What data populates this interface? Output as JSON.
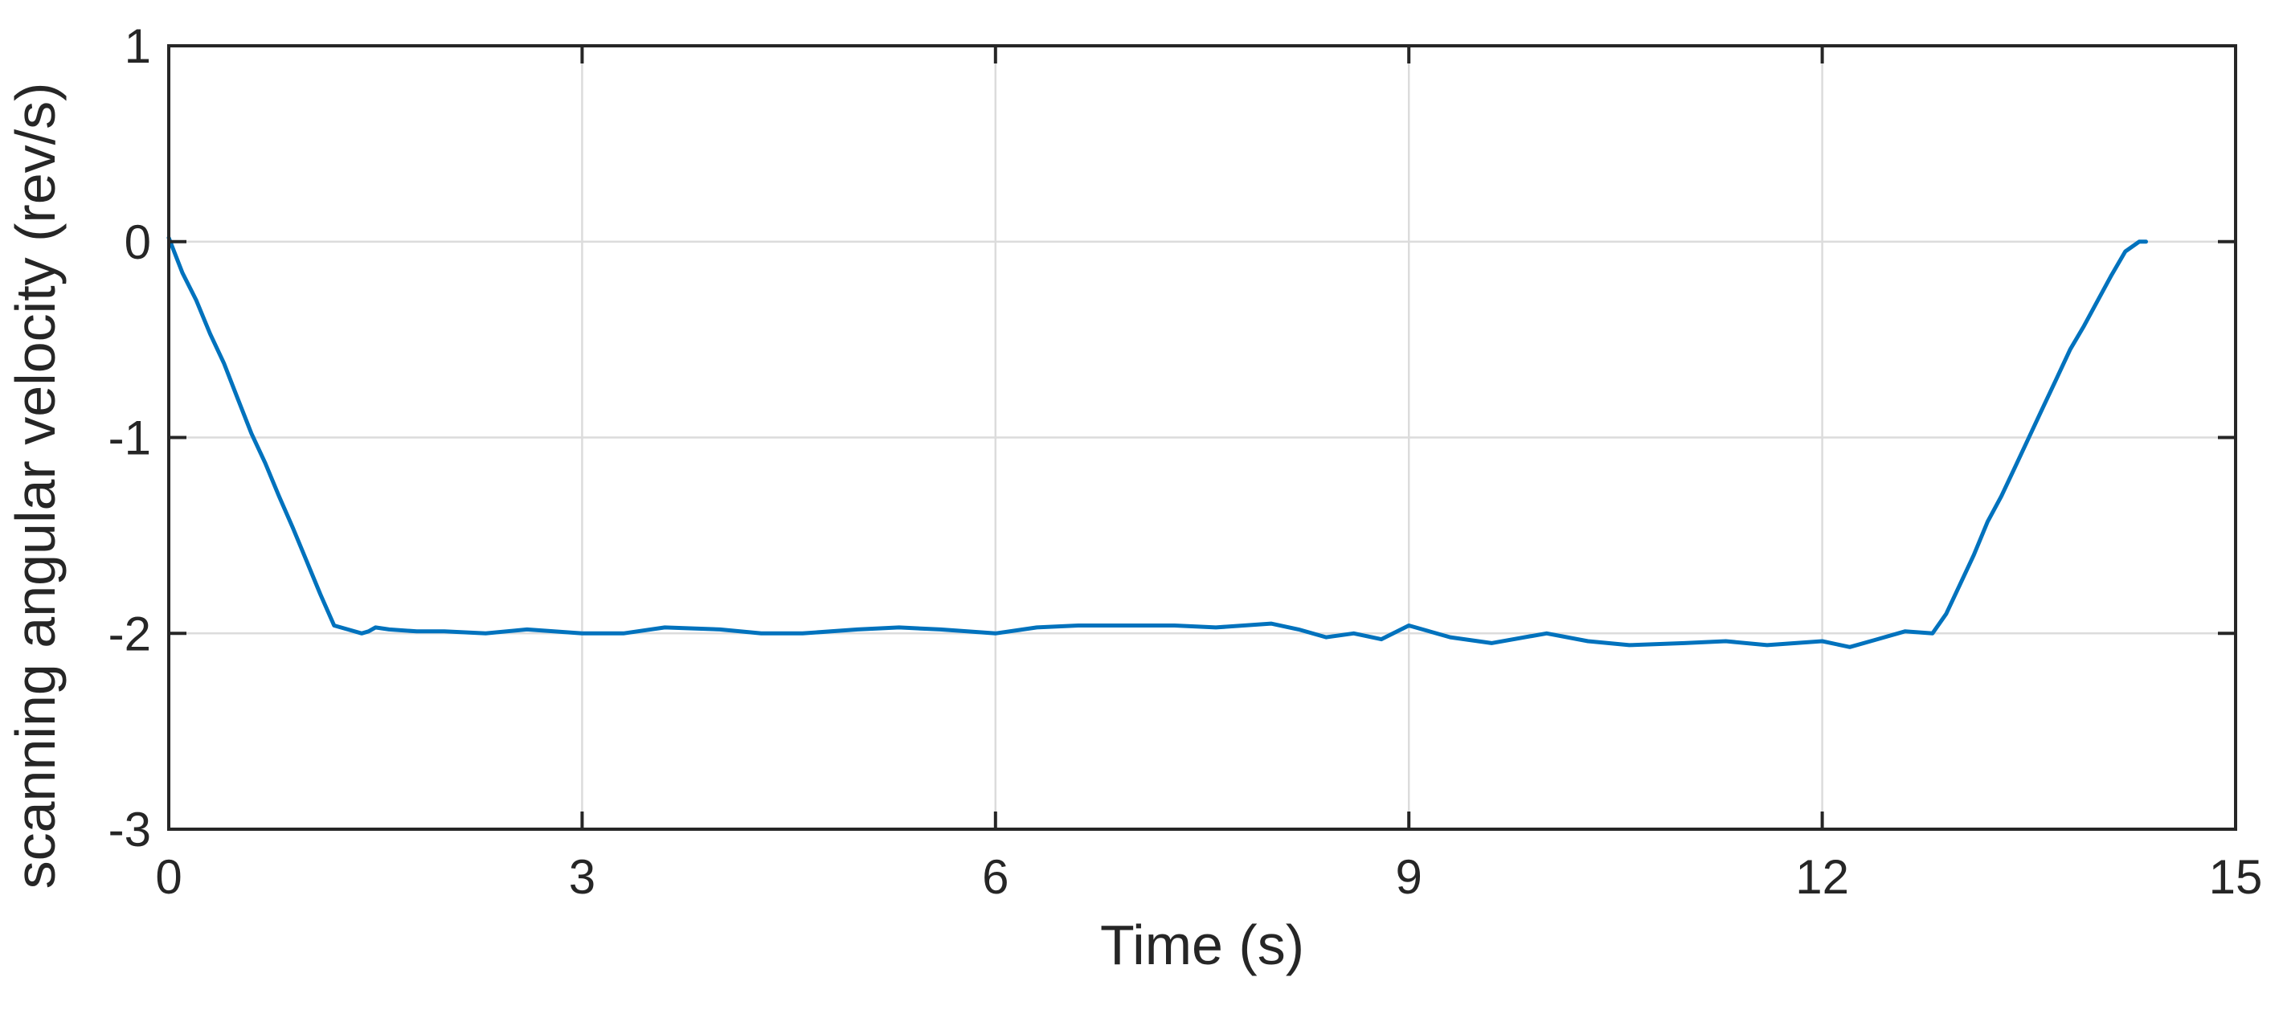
{
  "chart_data": {
    "type": "line",
    "title": "",
    "xlabel": "Time (s)",
    "ylabel": "scanning angular velocity (rev/s)",
    "xlim": [
      0,
      15
    ],
    "ylim": [
      -3,
      1
    ],
    "xticks": [
      0,
      3,
      6,
      9,
      12,
      15
    ],
    "yticks": [
      1,
      0,
      -1,
      -2,
      -3
    ],
    "xtick_labels": [
      "0",
      "3",
      "6",
      "9",
      "12",
      "15"
    ],
    "ytick_labels": [
      "1",
      "0",
      "-1",
      "-2",
      "-3"
    ],
    "grid": true,
    "colors": {
      "series": "#0072BD",
      "axes": "#262626",
      "grid": "#DCDCDC"
    },
    "series": [
      {
        "x": [
          0,
          0.1,
          0.2,
          0.3,
          0.4,
          0.5,
          0.6,
          0.7,
          0.8,
          0.9,
          1.0,
          1.1,
          1.2,
          1.3,
          1.4,
          1.45,
          1.5,
          1.6,
          1.8,
          2.0,
          2.3,
          2.6,
          3.0,
          3.3,
          3.6,
          4.0,
          4.3,
          4.6,
          5.0,
          5.3,
          5.6,
          6.0,
          6.3,
          6.6,
          7.0,
          7.3,
          7.6,
          8.0,
          8.2,
          8.4,
          8.6,
          8.8,
          9.0,
          9.3,
          9.6,
          10.0,
          10.3,
          10.6,
          11.0,
          11.3,
          11.6,
          12.0,
          12.2,
          12.4,
          12.6,
          12.8,
          12.9,
          13.0,
          13.1,
          13.2,
          13.3,
          13.4,
          13.5,
          13.6,
          13.7,
          13.8,
          13.9,
          14.0,
          14.1,
          14.2,
          14.3,
          14.35
        ],
        "values": [
          0.02,
          -0.16,
          -0.3,
          -0.47,
          -0.62,
          -0.8,
          -0.98,
          -1.13,
          -1.3,
          -1.46,
          -1.63,
          -1.8,
          -1.96,
          -1.98,
          -2.0,
          -1.99,
          -1.97,
          -1.98,
          -1.99,
          -1.99,
          -2.0,
          -1.98,
          -2.0,
          -2.0,
          -1.97,
          -1.98,
          -2.0,
          -2.0,
          -1.98,
          -1.97,
          -1.98,
          -2.0,
          -1.97,
          -1.96,
          -1.96,
          -1.96,
          -1.97,
          -1.95,
          -1.98,
          -2.02,
          -2.0,
          -2.03,
          -1.96,
          -2.02,
          -2.05,
          -2.0,
          -2.04,
          -2.06,
          -2.05,
          -2.04,
          -2.06,
          -2.04,
          -2.07,
          -2.03,
          -1.99,
          -2.0,
          -1.9,
          -1.75,
          -1.6,
          -1.43,
          -1.3,
          -1.15,
          -1.0,
          -0.85,
          -0.7,
          -0.55,
          -0.43,
          -0.3,
          -0.17,
          -0.05,
          0.0,
          0.0
        ]
      }
    ]
  }
}
